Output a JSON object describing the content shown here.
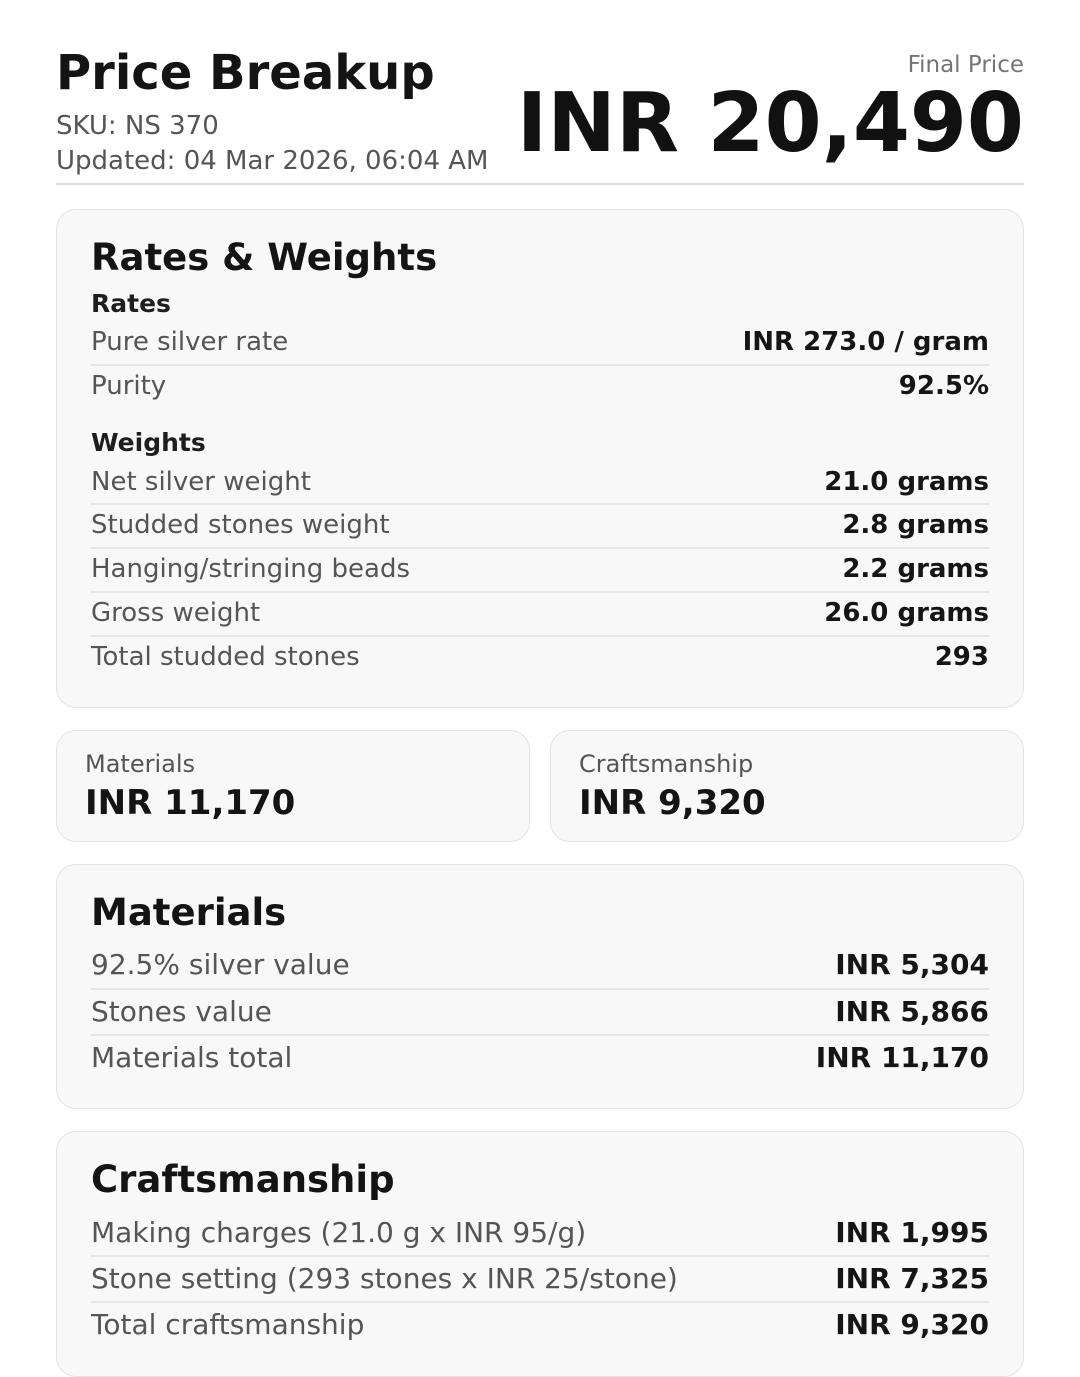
{
  "header": {
    "title": "Price Breakup",
    "sku": "SKU: NS 370",
    "updated": "Updated: 04 Mar 2026, 06:04 AM",
    "final_price_label": "Final Price",
    "final_price_value": "INR 20,490"
  },
  "rates_weights": {
    "title": "Rates & Weights",
    "rates": {
      "heading": "Rates",
      "rows": [
        {
          "label": "Pure silver rate",
          "value": "INR 273.0 / gram"
        },
        {
          "label": "Purity",
          "value": "92.5%"
        }
      ]
    },
    "weights": {
      "heading": "Weights",
      "rows": [
        {
          "label": "Net silver weight",
          "value": "21.0 grams"
        },
        {
          "label": "Studded stones weight",
          "value": "2.8 grams"
        },
        {
          "label": "Hanging/stringing beads",
          "value": "2.2 grams"
        },
        {
          "label": "Gross weight",
          "value": "26.0 grams"
        },
        {
          "label": "Total studded stones",
          "value": "293"
        }
      ]
    }
  },
  "summary": {
    "materials": {
      "label": "Materials",
      "value": "INR 11,170"
    },
    "craftsmanship": {
      "label": "Craftsmanship",
      "value": "INR 9,320"
    }
  },
  "materials_detail": {
    "title": "Materials",
    "rows": [
      {
        "label": "92.5% silver value",
        "value": "INR 5,304"
      },
      {
        "label": "Stones value",
        "value": "INR 5,866"
      },
      {
        "label": "Materials total",
        "value": "INR 11,170"
      }
    ]
  },
  "craftsmanship_detail": {
    "title": "Craftsmanship",
    "rows": [
      {
        "label": "Making charges (21.0 g x INR 95/g)",
        "value": "INR 1,995"
      },
      {
        "label": "Stone setting (293 stones x INR 25/stone)",
        "value": "INR 7,325"
      },
      {
        "label": "Total craftsmanship",
        "value": "INR 9,320"
      }
    ]
  },
  "colors": {
    "text_primary": "#141414",
    "text_secondary": "#555555",
    "text_tertiary": "#757575",
    "card_bg": "#f8f8f9",
    "card_border": "#e3e3e5",
    "row_divider": "#e5e5e6",
    "header_divider": "#d9d9d9"
  }
}
